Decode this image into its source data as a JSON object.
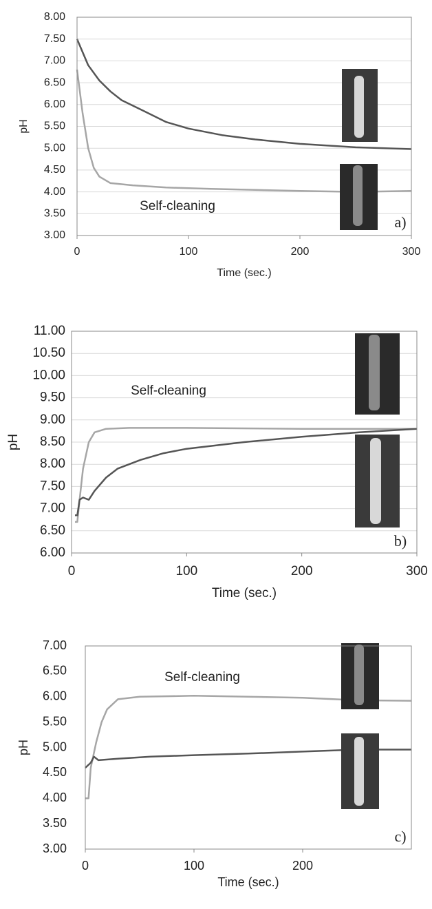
{
  "chart_data": [
    {
      "type": "line",
      "ylabel": "pH",
      "xlabel": "Time (sec.)",
      "annotation": "Self-cleaning",
      "panel_label": "a)",
      "xlim": [
        0,
        300
      ],
      "xticks": [
        0,
        100,
        200,
        300
      ],
      "ylim": [
        3,
        8
      ],
      "yticks": [
        {
          "value": 3,
          "label": "3.00"
        },
        {
          "value": 3.5,
          "label": "3.50"
        },
        {
          "value": 4,
          "label": "4.00"
        },
        {
          "value": 4.5,
          "label": "4.50"
        },
        {
          "value": 5,
          "label": "5.00"
        },
        {
          "value": 5.5,
          "label": "5.50"
        },
        {
          "value": 6,
          "label": "6.00"
        },
        {
          "value": 6.5,
          "label": "6.50"
        },
        {
          "value": 7,
          "label": "7.00"
        },
        {
          "value": 7.5,
          "label": "7.50"
        },
        {
          "value": 8,
          "label": "8.00"
        }
      ],
      "grid": true,
      "series": [
        {
          "color": "#555555",
          "x": [
            0,
            10,
            20,
            30,
            40,
            60,
            80,
            100,
            130,
            160,
            200,
            250,
            300
          ],
          "values": [
            7.5,
            6.9,
            6.55,
            6.3,
            6.1,
            5.85,
            5.6,
            5.45,
            5.3,
            5.2,
            5.1,
            5.02,
            4.98
          ]
        },
        {
          "color": "#a6a6a6",
          "x": [
            0,
            5,
            10,
            15,
            20,
            30,
            50,
            80,
            120,
            200,
            250,
            300
          ],
          "values": [
            6.8,
            5.8,
            5.0,
            4.55,
            4.35,
            4.2,
            4.15,
            4.1,
            4.07,
            4.02,
            4.0,
            4.02
          ]
        }
      ]
    },
    {
      "type": "line",
      "ylabel": "pH",
      "xlabel": "Time (sec.)",
      "annotation": "Self-cleaning",
      "panel_label": "b)",
      "xlim": [
        0,
        300
      ],
      "xticks": [
        0,
        100,
        200,
        300
      ],
      "ylim": [
        6,
        11
      ],
      "yticks": [
        {
          "value": 6,
          "label": "6.00"
        },
        {
          "value": 6.5,
          "label": "6.50"
        },
        {
          "value": 7,
          "label": "7.00"
        },
        {
          "value": 7.5,
          "label": "7.50"
        },
        {
          "value": 8,
          "label": "8.00"
        },
        {
          "value": 8.5,
          "label": "8.50"
        },
        {
          "value": 9,
          "label": "9.00"
        },
        {
          "value": 9.5,
          "label": "9.50"
        },
        {
          "value": 10,
          "label": "10.00"
        },
        {
          "value": 10.5,
          "label": "10.50"
        },
        {
          "value": 11,
          "label": "11.00"
        }
      ],
      "grid": true,
      "series": [
        {
          "color": "#a6a6a6",
          "x": [
            3,
            5,
            7,
            10,
            15,
            20,
            30,
            50,
            100,
            200,
            300
          ],
          "values": [
            6.7,
            6.7,
            7.2,
            7.9,
            8.5,
            8.72,
            8.8,
            8.82,
            8.82,
            8.8,
            8.8
          ]
        },
        {
          "color": "#555555",
          "x": [
            3,
            5,
            7,
            10,
            15,
            20,
            30,
            40,
            60,
            80,
            100,
            150,
            200,
            250,
            300
          ],
          "values": [
            6.85,
            6.85,
            7.2,
            7.25,
            7.2,
            7.4,
            7.7,
            7.9,
            8.1,
            8.25,
            8.35,
            8.5,
            8.62,
            8.72,
            8.8
          ]
        }
      ]
    },
    {
      "type": "line",
      "ylabel": "pH",
      "xlabel": "Time (sec.)",
      "annotation": "Self-cleaning",
      "panel_label": "c)",
      "xlim": [
        0,
        300
      ],
      "xticks": [
        0,
        100,
        200
      ],
      "ylim": [
        3,
        7
      ],
      "yticks": [
        {
          "value": 3,
          "label": "3.00"
        },
        {
          "value": 3.5,
          "label": "3.50"
        },
        {
          "value": 4,
          "label": "4.00"
        },
        {
          "value": 4.5,
          "label": "4.50"
        },
        {
          "value": 5,
          "label": "5.00"
        },
        {
          "value": 5.5,
          "label": "5.50"
        },
        {
          "value": 6,
          "label": "6.00"
        },
        {
          "value": 6.5,
          "label": "6.50"
        },
        {
          "value": 7,
          "label": "7.00"
        }
      ],
      "grid": false,
      "series": [
        {
          "color": "#a6a6a6",
          "x": [
            0,
            3,
            5,
            10,
            15,
            20,
            30,
            50,
            100,
            150,
            200,
            250,
            300
          ],
          "values": [
            4.0,
            4.0,
            4.6,
            5.1,
            5.5,
            5.75,
            5.95,
            6.0,
            6.02,
            6.0,
            5.98,
            5.93,
            5.92
          ]
        },
        {
          "color": "#555555",
          "x": [
            0,
            5,
            8,
            12,
            30,
            60,
            100,
            150,
            200,
            250,
            300
          ],
          "values": [
            4.6,
            4.7,
            4.82,
            4.75,
            4.78,
            4.82,
            4.85,
            4.88,
            4.92,
            4.96,
            4.96
          ]
        }
      ]
    }
  ]
}
